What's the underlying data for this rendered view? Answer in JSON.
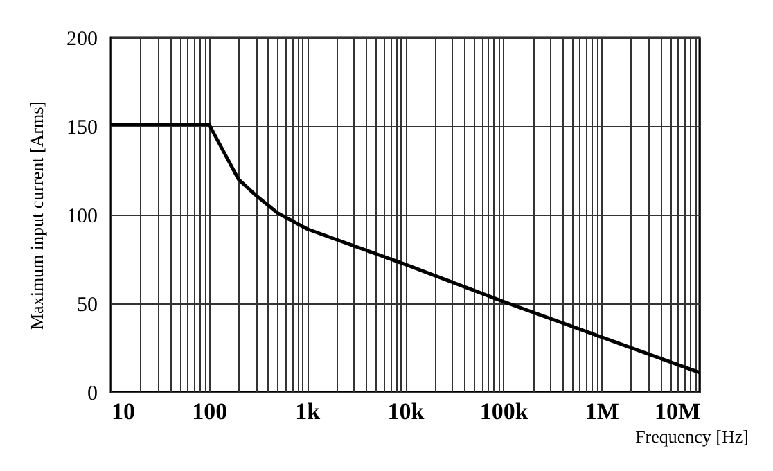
{
  "chart_data": {
    "type": "line",
    "xlabel": "Frequency [Hz]",
    "ylabel": "Maximum input current [Arms]",
    "x": [
      10,
      100,
      200,
      300,
      500,
      1000,
      10000,
      100000,
      1000000,
      10000000
    ],
    "series": [
      {
        "color": "#000000",
        "values": [
          151,
          151,
          120,
          111,
          101,
          92,
          72,
          51,
          31,
          11
        ]
      }
    ],
    "log": "x",
    "xlim": [
      10,
      10000000
    ],
    "ylim": [
      0,
      200
    ],
    "xticks": [
      10,
      {
        "value": 20,
        "label": null
      },
      {
        "value": 30,
        "label": null
      },
      {
        "value": 40,
        "label": null
      },
      {
        "value": 50,
        "label": null
      },
      {
        "value": 60,
        "label": null
      },
      {
        "value": 70,
        "label": null
      },
      {
        "value": 80,
        "label": null
      },
      {
        "value": 90,
        "label": null
      },
      100,
      {
        "value": 200,
        "label": null
      },
      {
        "value": 300,
        "label": null
      },
      {
        "value": 400,
        "label": null
      },
      {
        "value": 500,
        "label": null
      },
      {
        "value": 600,
        "label": null
      },
      {
        "value": 700,
        "label": null
      },
      {
        "value": 800,
        "label": null
      },
      {
        "value": 900,
        "label": null
      },
      {
        "value": 1000,
        "label": "1k"
      },
      {
        "value": 2000,
        "label": null
      },
      {
        "value": 3000,
        "label": null
      },
      {
        "value": 4000,
        "label": null
      },
      {
        "value": 5000,
        "label": null
      },
      {
        "value": 6000,
        "label": null
      },
      {
        "value": 7000,
        "label": null
      },
      {
        "value": 8000,
        "label": null
      },
      {
        "value": 9000,
        "label": null
      },
      {
        "value": 10000,
        "label": "10k"
      },
      {
        "value": 20000,
        "label": null
      },
      {
        "value": 30000,
        "label": null
      },
      {
        "value": 40000,
        "label": null
      },
      {
        "value": 50000,
        "label": null
      },
      {
        "value": 60000,
        "label": null
      },
      {
        "value": 70000,
        "label": null
      },
      {
        "value": 80000,
        "label": null
      },
      {
        "value": 90000,
        "label": null
      },
      {
        "value": 100000,
        "label": "100k"
      },
      {
        "value": 200000,
        "label": null
      },
      {
        "value": 300000,
        "label": null
      },
      {
        "value": 400000,
        "label": null
      },
      {
        "value": 500000,
        "label": null
      },
      {
        "value": 600000,
        "label": null
      },
      {
        "value": 700000,
        "label": null
      },
      {
        "value": 800000,
        "label": null
      },
      {
        "value": 900000,
        "label": null
      },
      {
        "value": 1000000,
        "label": "1M"
      },
      {
        "value": 2000000,
        "label": null
      },
      {
        "value": 3000000,
        "label": null
      },
      {
        "value": 4000000,
        "label": null
      },
      {
        "value": 5000000,
        "label": null
      },
      {
        "value": 6000000,
        "label": null
      },
      {
        "value": 7000000,
        "label": null
      },
      {
        "value": 8000000,
        "label": null
      },
      {
        "value": 9000000,
        "label": null
      },
      {
        "value": 10000000,
        "label": "10M"
      }
    ],
    "yticks": [
      0,
      50,
      100,
      150,
      200
    ],
    "grid": true,
    "marker": "none",
    "line_style": "solid"
  }
}
